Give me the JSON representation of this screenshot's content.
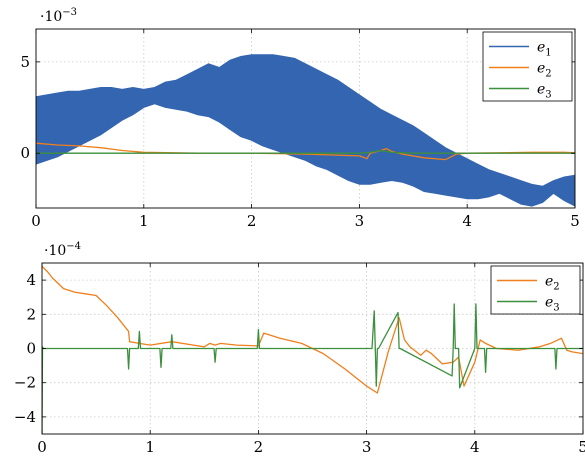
{
  "chart_data": [
    {
      "type": "line",
      "id": "top",
      "scale_label": "·10",
      "scale_exponent": "−3",
      "xlim": [
        0,
        5
      ],
      "ylim": [
        -3.0,
        6.8
      ],
      "grid": true,
      "legend_position": "top-right",
      "x_ticks": [
        0,
        1,
        2,
        3,
        4,
        5
      ],
      "x_tick_labels": [
        "0",
        "1",
        "2",
        "3",
        "4",
        "5"
      ],
      "y_ticks": [
        0,
        5
      ],
      "y_tick_labels": [
        "0",
        "5"
      ],
      "band": {
        "name": "e1",
        "color": "#3465b0",
        "x": [
          0,
          0.1,
          0.2,
          0.3,
          0.4,
          0.5,
          0.6,
          0.7,
          0.8,
          0.9,
          1.0,
          1.1,
          1.2,
          1.3,
          1.4,
          1.5,
          1.6,
          1.7,
          1.8,
          1.9,
          2.0,
          2.1,
          2.2,
          2.3,
          2.4,
          2.5,
          2.6,
          2.7,
          2.8,
          2.9,
          3.0,
          3.1,
          3.2,
          3.3,
          3.4,
          3.5,
          3.6,
          3.7,
          3.8,
          3.9,
          4.0,
          4.1,
          4.2,
          4.3,
          4.4,
          4.5,
          4.6,
          4.7,
          4.8,
          4.9,
          5.0
        ],
        "upper": [
          3.1,
          3.2,
          3.3,
          3.4,
          3.4,
          3.5,
          3.6,
          3.6,
          3.5,
          3.6,
          3.5,
          3.6,
          3.9,
          4.0,
          4.3,
          4.6,
          4.9,
          4.7,
          5.1,
          5.3,
          5.4,
          5.4,
          5.4,
          5.3,
          5.2,
          4.9,
          4.6,
          4.3,
          4.0,
          3.6,
          3.2,
          2.8,
          2.4,
          2.1,
          1.8,
          1.5,
          1.1,
          0.7,
          0.3,
          0.0,
          -0.3,
          -0.6,
          -0.9,
          -1.1,
          -1.3,
          -1.5,
          -1.7,
          -1.8,
          -1.5,
          -1.3,
          -1.2
        ],
        "lower": [
          -0.6,
          -0.4,
          -0.2,
          0.1,
          0.4,
          0.7,
          1.0,
          1.4,
          1.8,
          2.1,
          2.5,
          2.7,
          2.5,
          2.4,
          2.3,
          2.1,
          2.0,
          1.7,
          1.3,
          0.9,
          0.7,
          0.4,
          0.2,
          0.0,
          -0.2,
          -0.4,
          -0.7,
          -0.9,
          -1.2,
          -1.5,
          -1.7,
          -1.7,
          -1.6,
          -1.5,
          -1.6,
          -1.8,
          -2.1,
          -2.2,
          -2.3,
          -2.4,
          -2.5,
          -2.5,
          -2.4,
          -2.2,
          -2.5,
          -2.8,
          -2.9,
          -2.7,
          -2.2,
          -2.6,
          -2.9
        ]
      },
      "series": [
        {
          "name": "e2",
          "color": "#f07f1c",
          "x": [
            0,
            0.2,
            0.4,
            0.6,
            0.8,
            1.0,
            1.5,
            2.0,
            2.5,
            3.0,
            3.05,
            3.07,
            3.1,
            3.2,
            3.25,
            3.3,
            3.4,
            3.6,
            3.8,
            3.85,
            3.9,
            4.0,
            4.3,
            4.6,
            4.9,
            5.0
          ],
          "y": [
            0.55,
            0.45,
            0.4,
            0.3,
            0.15,
            0.05,
            0.0,
            0.0,
            -0.05,
            -0.15,
            -0.25,
            -0.3,
            0.0,
            0.15,
            0.25,
            0.1,
            -0.05,
            -0.25,
            -0.35,
            -0.2,
            -0.05,
            0.0,
            0.02,
            0.05,
            0.05,
            0.02
          ]
        },
        {
          "name": "e3",
          "color": "#3c8f3c",
          "x": [
            0,
            0.5,
            1.0,
            1.5,
            2.0,
            2.5,
            3.0,
            3.1,
            3.2,
            3.3,
            3.5,
            4.0,
            4.5,
            5.0
          ],
          "y": [
            0.0,
            0.0,
            0.0,
            0.0,
            0.0,
            0.0,
            0.0,
            0.05,
            0.15,
            0.05,
            0.0,
            0.0,
            0.0,
            0.0
          ]
        }
      ],
      "legend": [
        {
          "base": "e",
          "sub": "1",
          "color": "#3465b0"
        },
        {
          "base": "e",
          "sub": "2",
          "color": "#f07f1c"
        },
        {
          "base": "e",
          "sub": "3",
          "color": "#3c8f3c"
        }
      ]
    },
    {
      "type": "line",
      "id": "bottom",
      "scale_label": "·10",
      "scale_exponent": "−4",
      "xlim": [
        0,
        5
      ],
      "ylim": [
        -5,
        5
      ],
      "grid": true,
      "legend_position": "top-right",
      "x_ticks": [
        0,
        1,
        2,
        3,
        4,
        5
      ],
      "x_tick_labels": [
        "0",
        "1",
        "2",
        "3",
        "4",
        "5"
      ],
      "y_ticks": [
        -4,
        -2,
        0,
        2,
        4
      ],
      "y_tick_labels": [
        "−4",
        "−2",
        "0",
        "2",
        "4"
      ],
      "series": [
        {
          "name": "e2",
          "color": "#f07f1c",
          "x": [
            0,
            0.05,
            0.1,
            0.2,
            0.3,
            0.4,
            0.5,
            0.6,
            0.7,
            0.8,
            0.81,
            0.9,
            1.0,
            1.2,
            1.4,
            1.5,
            1.55,
            1.6,
            1.65,
            1.8,
            2.0,
            2.05,
            2.2,
            2.4,
            2.6,
            2.8,
            3.0,
            3.1,
            3.2,
            3.3,
            3.35,
            3.4,
            3.5,
            3.55,
            3.6,
            3.7,
            3.8,
            3.85,
            3.9,
            4.0,
            4.05,
            4.1,
            4.2,
            4.4,
            4.6,
            4.7,
            4.8,
            4.85,
            4.9,
            5.0
          ],
          "y": [
            4.8,
            4.5,
            4.1,
            3.5,
            3.3,
            3.2,
            3.1,
            2.5,
            1.8,
            1.0,
            0.4,
            0.3,
            0.2,
            0.4,
            0.2,
            0.1,
            0.3,
            0.2,
            0.3,
            0.2,
            0.15,
            0.9,
            0.6,
            0.3,
            -0.3,
            -1.2,
            -2.2,
            -2.6,
            -0.2,
            1.8,
            0.5,
            0.1,
            -0.4,
            -0.1,
            -0.3,
            -0.9,
            -0.8,
            -0.5,
            -2.2,
            -0.8,
            0.5,
            0.3,
            0.0,
            -0.1,
            0.1,
            0.3,
            0.6,
            -0.1,
            -0.2,
            -0.3
          ]
        },
        {
          "name": "e3",
          "color": "#3c8f3c",
          "x": [
            0,
            0.005,
            0.01,
            0.79,
            0.8,
            0.81,
            0.89,
            0.9,
            0.91,
            1.09,
            1.1,
            1.11,
            1.19,
            1.2,
            1.21,
            1.59,
            1.6,
            1.61,
            1.99,
            2.0,
            2.01,
            3.05,
            3.07,
            3.08,
            3.09,
            3.1,
            3.11,
            3.29,
            3.3,
            3.31,
            3.79,
            3.8,
            3.81,
            3.82,
            3.85,
            3.86,
            4.0,
            4.01,
            4.02,
            4.09,
            4.1,
            4.11,
            4.74,
            4.75,
            4.76,
            5.0
          ],
          "y": [
            -5.0,
            0.1,
            0.0,
            0.0,
            -1.2,
            0.0,
            0.0,
            1.0,
            0.0,
            0.0,
            -1.1,
            0.0,
            0.0,
            0.8,
            0.0,
            0.0,
            -0.8,
            0.0,
            0.0,
            1.1,
            0.0,
            0.0,
            2.2,
            0.0,
            -2.2,
            0.0,
            0.0,
            2.1,
            0.0,
            0.0,
            -1.6,
            0.0,
            2.6,
            0.0,
            0.0,
            -2.3,
            0.0,
            2.6,
            0.0,
            0.0,
            -1.4,
            0.0,
            0.0,
            -1.2,
            0.0,
            0.0
          ]
        }
      ],
      "legend": [
        {
          "base": "e",
          "sub": "2",
          "color": "#f07f1c"
        },
        {
          "base": "e",
          "sub": "3",
          "color": "#3c8f3c"
        }
      ]
    }
  ]
}
